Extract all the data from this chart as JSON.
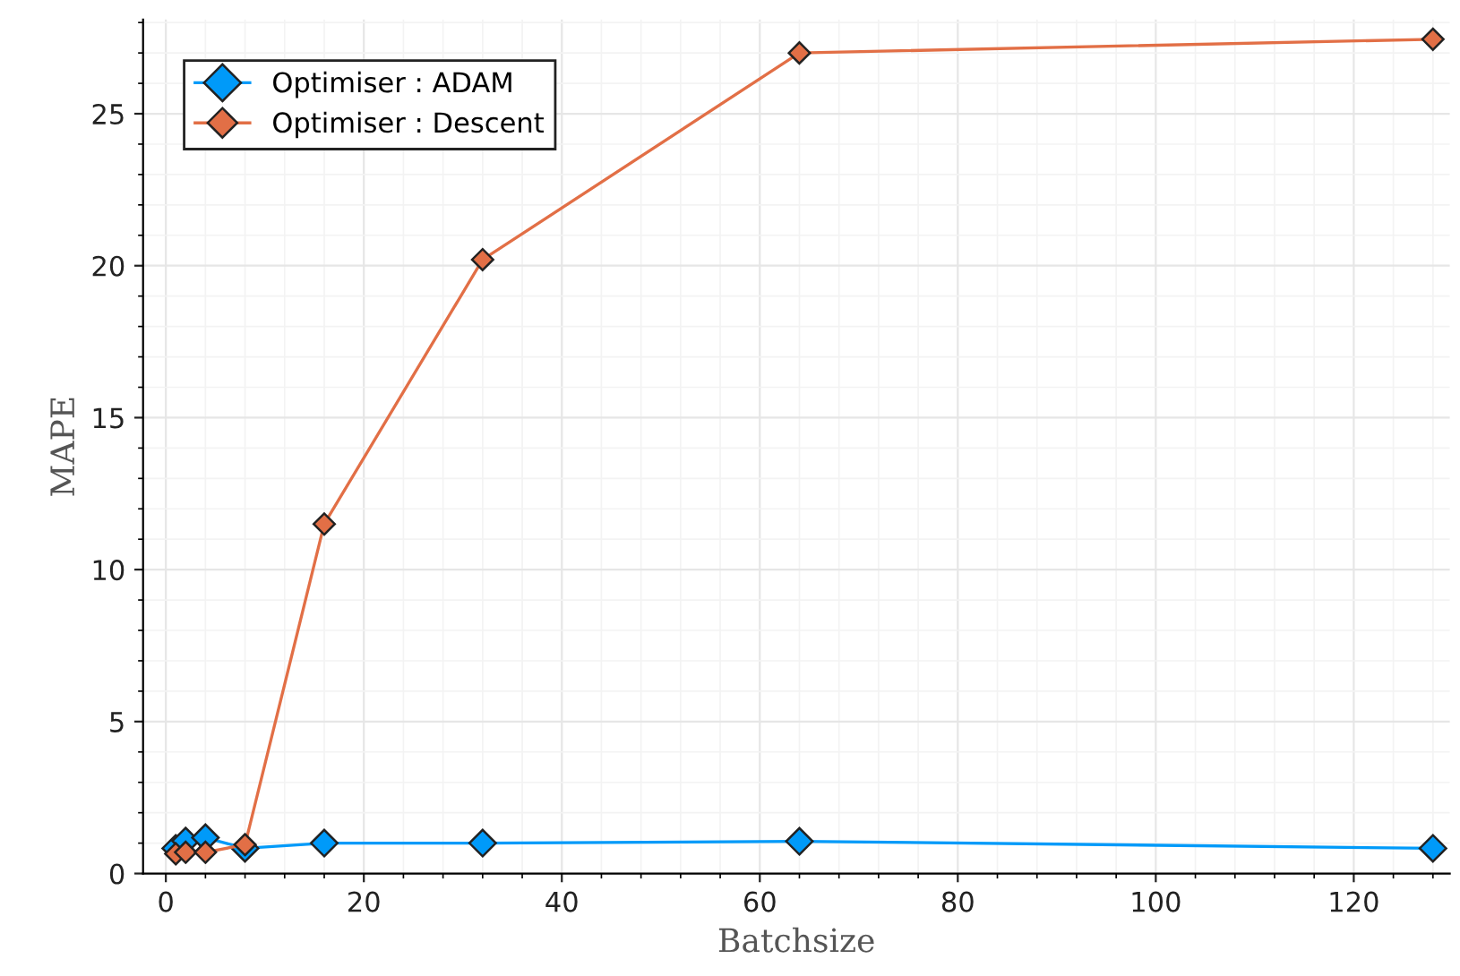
{
  "chart_data": {
    "type": "line",
    "xlabel": "Batchsize",
    "ylabel": "MAPE",
    "x": [
      1,
      2,
      4,
      8,
      16,
      32,
      64,
      128
    ],
    "series": [
      {
        "name": "Optimiser : ADAM",
        "color": "#009af9",
        "values": [
          0.83,
          1.07,
          1.18,
          0.83,
          1.0,
          1.0,
          1.06,
          0.83
        ]
      },
      {
        "name": "Optimiser : Descent",
        "color": "#e26f46",
        "values": [
          0.65,
          0.7,
          0.7,
          0.95,
          11.5,
          20.2,
          27.0,
          27.45
        ]
      }
    ],
    "xlim": [
      -2.3,
      129.7
    ],
    "ylim": [
      0,
      28.1
    ],
    "xticks": [
      0,
      20,
      40,
      60,
      80,
      100,
      120
    ],
    "yticks": [
      0,
      5,
      10,
      15,
      20,
      25
    ],
    "grid": true,
    "legend": "top left",
    "marker": "diamond",
    "line_style": "solid"
  }
}
